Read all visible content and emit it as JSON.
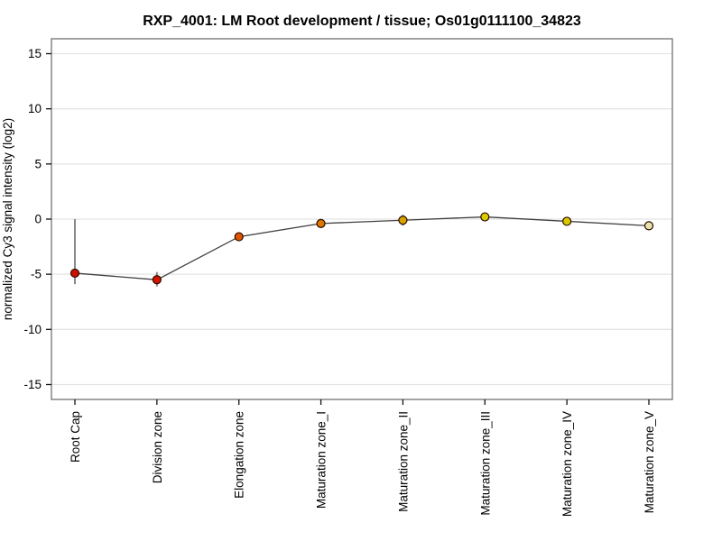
{
  "chart_data": {
    "type": "line",
    "title": "RXP_4001: LM Root development / tissue; Os01g0111100_34823",
    "xlabel": "",
    "ylabel": "normalized Cy3 signal intensity (log2)",
    "categories": [
      "Root Cap",
      "Division zone",
      "Elongation zone",
      "Maturation zone_I",
      "Maturation zone_II",
      "Maturation zone_III",
      "Maturation zone_IV",
      "Maturation zone_V"
    ],
    "values": [
      -4.9,
      -5.5,
      -1.6,
      -0.4,
      -0.1,
      0.2,
      -0.2,
      -0.6
    ],
    "error_high": [
      0.0,
      -4.8,
      -1.2,
      -0.1,
      0.4,
      0.6,
      0.1,
      -0.4
    ],
    "error_low": [
      -5.9,
      -6.1,
      -2.0,
      -0.7,
      -0.6,
      -0.2,
      -0.5,
      -0.9
    ],
    "point_colors": [
      "#cc1100",
      "#d41400",
      "#dd5500",
      "#dd7700",
      "#d6a400",
      "#d8cc00",
      "#d8c800",
      "#e8e3ae"
    ],
    "point_outline_color": "#2a0a00",
    "yticks": [
      15,
      10,
      5,
      0,
      -5,
      -10,
      -15
    ],
    "ylim": [
      -16.35,
      16.35
    ],
    "grid": true,
    "legend": "none",
    "line_color": "#404040",
    "gridline_color": "#e4e4e4",
    "frame_color": "#666666",
    "errorbar_color": "#8a8a8a",
    "tick_color": "#111111",
    "background_color": "#ffffff"
  }
}
